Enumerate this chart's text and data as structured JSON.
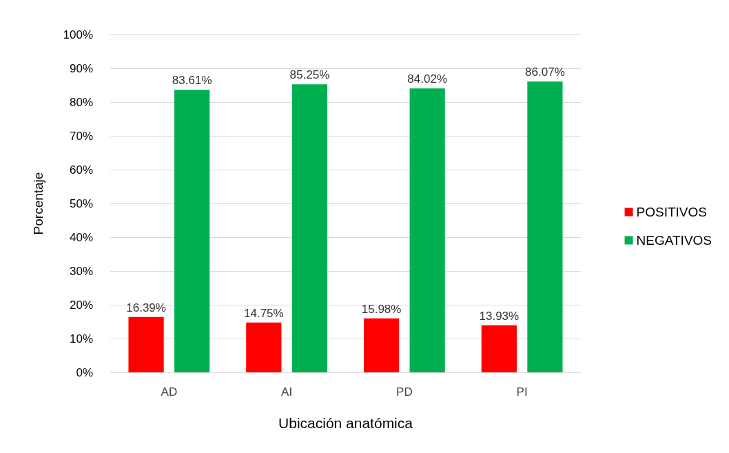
{
  "chart_data": {
    "type": "bar",
    "xlabel": "Ubicación anatómica",
    "ylabel": "Porcentaje",
    "categories": [
      "AD",
      "AI",
      "PD",
      "PI"
    ],
    "series": [
      {
        "name": "POSITIVOS",
        "color": "#ff0000",
        "values": [
          16.39,
          14.75,
          15.98,
          13.93
        ],
        "value_labels": [
          "16.39%",
          "14.75%",
          "15.98%",
          "13.93%"
        ]
      },
      {
        "name": "NEGATIVOS",
        "color": "#00b050",
        "values": [
          83.61,
          85.25,
          84.02,
          86.07
        ],
        "value_labels": [
          "83.61%",
          "85.25%",
          "84.02%",
          "86.07%"
        ]
      }
    ],
    "ylim": [
      0,
      100
    ],
    "yticks": [
      {
        "value": 0,
        "label": "0%"
      },
      {
        "value": 10,
        "label": "10%"
      },
      {
        "value": 20,
        "label": "20%"
      },
      {
        "value": 30,
        "label": "30%"
      },
      {
        "value": 40,
        "label": "40%"
      },
      {
        "value": 50,
        "label": "50%"
      },
      {
        "value": 60,
        "label": "60%"
      },
      {
        "value": 70,
        "label": "70%"
      },
      {
        "value": 80,
        "label": "80%"
      },
      {
        "value": 90,
        "label": "90%"
      },
      {
        "value": 100,
        "label": "100%"
      }
    ],
    "grid": "y",
    "legend": "right"
  }
}
